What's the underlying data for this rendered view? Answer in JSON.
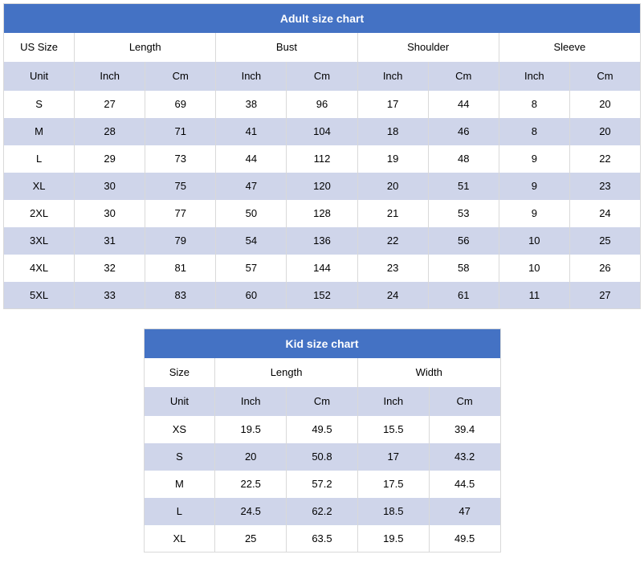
{
  "colors": {
    "header_bg": "#4472c4",
    "header_text": "#ffffff",
    "stripe_light": "#ffffff",
    "stripe_dark": "#cfd5ea",
    "border": "#d9d9d9",
    "text": "#000000"
  },
  "adult": {
    "title": "Adult size chart",
    "size_col_label": "US Size",
    "unit_label": "Unit",
    "measurements": [
      "Length",
      "Bust",
      "Shoulder",
      "Sleeve"
    ],
    "units": [
      "Inch",
      "Cm"
    ],
    "rows": [
      {
        "size": "S",
        "values": [
          "27",
          "69",
          "38",
          "96",
          "17",
          "44",
          "8",
          "20"
        ]
      },
      {
        "size": "M",
        "values": [
          "28",
          "71",
          "41",
          "104",
          "18",
          "46",
          "8",
          "20"
        ]
      },
      {
        "size": "L",
        "values": [
          "29",
          "73",
          "44",
          "112",
          "19",
          "48",
          "9",
          "22"
        ]
      },
      {
        "size": "XL",
        "values": [
          "30",
          "75",
          "47",
          "120",
          "20",
          "51",
          "9",
          "23"
        ]
      },
      {
        "size": "2XL",
        "values": [
          "30",
          "77",
          "50",
          "128",
          "21",
          "53",
          "9",
          "24"
        ]
      },
      {
        "size": "3XL",
        "values": [
          "31",
          "79",
          "54",
          "136",
          "22",
          "56",
          "10",
          "25"
        ]
      },
      {
        "size": "4XL",
        "values": [
          "32",
          "81",
          "57",
          "144",
          "23",
          "58",
          "10",
          "26"
        ]
      },
      {
        "size": "5XL",
        "values": [
          "33",
          "83",
          "60",
          "152",
          "24",
          "61",
          "11",
          "27"
        ]
      }
    ]
  },
  "kid": {
    "title": "Kid size chart",
    "size_col_label": "Size",
    "unit_label": "Unit",
    "measurements": [
      "Length",
      "Width"
    ],
    "units": [
      "Inch",
      "Cm"
    ],
    "rows": [
      {
        "size": "XS",
        "values": [
          "19.5",
          "49.5",
          "15.5",
          "39.4"
        ]
      },
      {
        "size": "S",
        "values": [
          "20",
          "50.8",
          "17",
          "43.2"
        ]
      },
      {
        "size": "M",
        "values": [
          "22.5",
          "57.2",
          "17.5",
          "44.5"
        ]
      },
      {
        "size": "L",
        "values": [
          "24.5",
          "62.2",
          "18.5",
          "47"
        ]
      },
      {
        "size": "XL",
        "values": [
          "25",
          "63.5",
          "19.5",
          "49.5"
        ]
      }
    ]
  }
}
